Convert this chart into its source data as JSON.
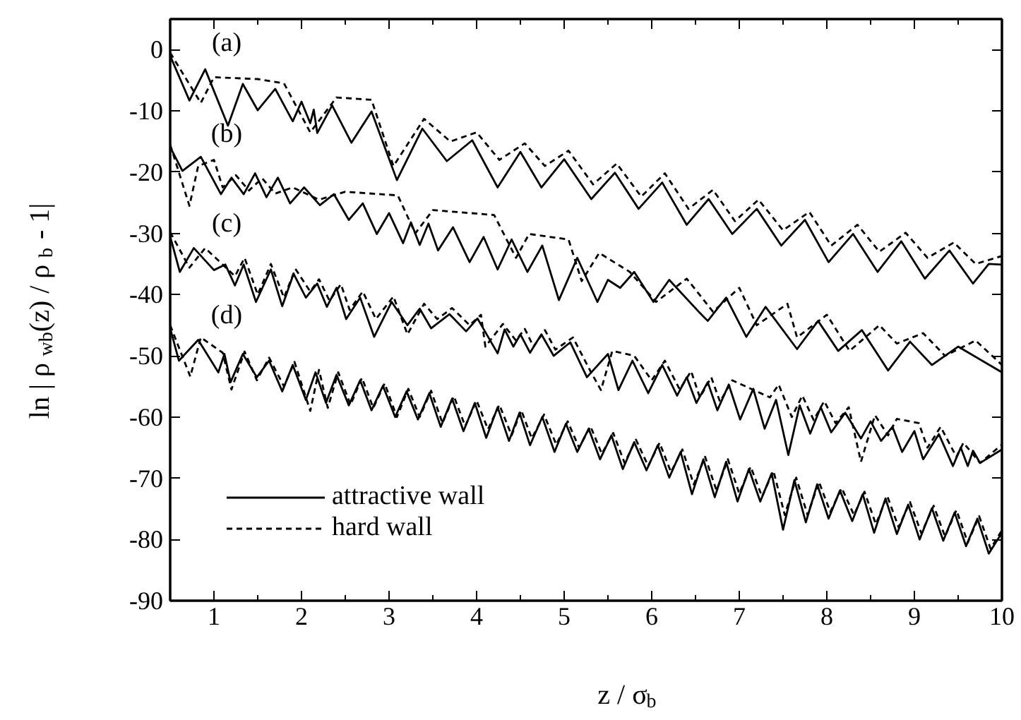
{
  "chart_data": {
    "type": "line",
    "xlabel": "z / σ$_{b}$",
    "ylabel": "ln | ρ$_{wb}$(z) / ρ$_{b}$ - 1|",
    "xlim": [
      0.5,
      10
    ],
    "ylim": [
      -90,
      5
    ],
    "xticks": [
      1,
      2,
      3,
      4,
      5,
      6,
      7,
      8,
      9,
      10
    ],
    "yticks": [
      0,
      -10,
      -20,
      -30,
      -40,
      -50,
      -60,
      -70,
      -80,
      -90
    ],
    "legend": "bottom left",
    "annotations": [
      "(a)",
      "(b)",
      "(c)",
      "(d)"
    ],
    "series": [
      {
        "name": "attractive wall",
        "color": "#000000",
        "line_style": "solid",
        "x": [
          0.5,
          0.72,
          0.9,
          1.16,
          1.33,
          1.5,
          1.7,
          1.9,
          2.0,
          2.1,
          2.14,
          2.18,
          2.35,
          2.57,
          2.8,
          3.09,
          3.38,
          3.66,
          3.95,
          4.24,
          4.5,
          4.74,
          5.0,
          5.31,
          5.58,
          5.85,
          6.12,
          6.4,
          6.65,
          6.92,
          7.2,
          7.48,
          7.75,
          8.02,
          8.3,
          8.58,
          8.85,
          9.12,
          9.4,
          9.67,
          9.85,
          10
        ],
        "values": [
          -1,
          -8.3,
          -3.2,
          -12.4,
          -5.6,
          -9.9,
          -6.4,
          -11.7,
          -8.5,
          -12,
          -9.8,
          -13.6,
          -9.1,
          -15.2,
          -10.1,
          -21.3,
          -12.9,
          -18.2,
          -14.8,
          -22.5,
          -16.7,
          -22.5,
          -17.9,
          -24.4,
          -20.1,
          -26,
          -21.7,
          -28.6,
          -24.4,
          -30.1,
          -26,
          -32,
          -27.8,
          -34.7,
          -30.1,
          -36.3,
          -31.3,
          -37.4,
          -32.8,
          -38.2,
          -35,
          -35.1
        ]
      },
      {
        "name": "hard wall",
        "color": "#000000",
        "line_style": "dashed",
        "x": [
          0.5,
          0.85,
          1.0,
          1.5,
          1.8,
          2.1,
          2.4,
          2.8,
          3.05,
          3.4,
          3.7,
          4.0,
          4.26,
          4.55,
          4.78,
          5.05,
          5.33,
          5.6,
          5.88,
          6.15,
          6.42,
          6.7,
          6.95,
          7.22,
          7.5,
          7.8,
          8.05,
          8.35,
          8.6,
          8.9,
          9.15,
          9.45,
          9.7,
          10
        ],
        "values": [
          -0.5,
          -8.7,
          -4.5,
          -4.8,
          -5.5,
          -13.5,
          -7.8,
          -8.2,
          -19,
          -11.3,
          -15,
          -13.5,
          -18,
          -15.3,
          -19,
          -16.5,
          -22,
          -18.6,
          -24,
          -20.2,
          -26,
          -22.9,
          -28,
          -24.5,
          -29.5,
          -26.5,
          -32,
          -28.6,
          -33,
          -29.9,
          -34,
          -31.5,
          -35,
          -33.7
        ]
      },
      {
        "color": "#000000",
        "line_style": "solid",
        "x": [
          0.5,
          0.64,
          0.85,
          1.08,
          1.2,
          1.34,
          1.47,
          1.6,
          1.73,
          1.87,
          2.03,
          2.21,
          2.37,
          2.54,
          2.7,
          2.86,
          3.0,
          3.16,
          3.25,
          3.35,
          3.45,
          3.56,
          3.73,
          3.92,
          4.08,
          4.24,
          4.4,
          4.58,
          4.75,
          4.94,
          5.15,
          5.38,
          5.5,
          5.64,
          5.8,
          6.02,
          6.2,
          6.55,
          6.64,
          6.85,
          7.08,
          7.3,
          7.66,
          7.9,
          8.13,
          8.4,
          8.7,
          8.95,
          9.2,
          9.5,
          10
        ],
        "values": [
          -15.9,
          -19.8,
          -17.5,
          -23.6,
          -20.9,
          -23.6,
          -20.2,
          -24.1,
          -20.9,
          -25.1,
          -22.5,
          -25.4,
          -23.6,
          -27.8,
          -25.1,
          -30.1,
          -26.7,
          -31.6,
          -28.2,
          -31.9,
          -28.4,
          -32.8,
          -29,
          -34.7,
          -30.6,
          -35.9,
          -31,
          -36.3,
          -32,
          -40.9,
          -34,
          -41.2,
          -37.6,
          -38.9,
          -36.3,
          -41.2,
          -37.6,
          -43,
          -44.3,
          -40.5,
          -46.9,
          -42,
          -48.9,
          -44.3,
          -49.2,
          -45.8,
          -52.4,
          -47.7,
          -51.5,
          -48.5,
          -52.7
        ]
      },
      {
        "color": "#000000",
        "line_style": "dashed",
        "x": [
          0.5,
          0.72,
          0.82,
          1.0,
          1.1,
          1.25,
          1.4,
          1.55,
          1.7,
          1.9,
          2.2,
          2.5,
          3.1,
          3.3,
          3.5,
          4.2,
          4.45,
          4.6,
          5.05,
          5.2,
          5.4,
          5.75,
          6.05,
          6.4,
          6.7,
          7.0,
          7.2,
          7.55,
          7.66,
          8.0,
          8.26,
          8.6,
          8.8,
          9.1,
          9.35,
          9.7,
          10
        ],
        "values": [
          -15.5,
          -25.5,
          -19,
          -18,
          -22.5,
          -20.5,
          -23,
          -21,
          -23.5,
          -22.5,
          -24.5,
          -23.2,
          -23.8,
          -30,
          -26.2,
          -27,
          -34,
          -30.1,
          -31,
          -37.8,
          -33.2,
          -36.3,
          -41.2,
          -37.4,
          -42.8,
          -38.9,
          -45,
          -41.5,
          -47,
          -43.3,
          -49.2,
          -45,
          -48,
          -46.3,
          -50,
          -47.5,
          -51.5
        ]
      },
      {
        "color": "#000000",
        "line_style": "solid",
        "x": [
          0.5,
          0.61,
          0.77,
          1.0,
          1.13,
          1.24,
          1.34,
          1.48,
          1.65,
          1.78,
          1.91,
          2.05,
          2.18,
          2.29,
          2.4,
          2.51,
          2.67,
          2.83,
          3.03,
          3.21,
          3.35,
          3.48,
          3.69,
          3.88,
          4.01,
          4.24,
          4.32,
          4.42,
          4.5,
          4.61,
          4.74,
          4.88,
          5.07,
          5.26,
          5.5,
          5.62,
          5.78,
          5.96,
          6.12,
          6.29,
          6.4,
          6.51,
          6.64,
          6.75,
          6.88,
          7.01,
          7.16,
          7.29,
          7.42,
          7.56,
          7.69,
          7.81,
          7.93,
          8.05,
          8.21,
          8.39,
          8.5,
          8.62,
          8.75,
          8.86,
          9.0,
          9.1,
          9.28,
          9.44,
          9.53,
          9.61,
          9.67,
          9.75,
          10
        ],
        "values": [
          -30.5,
          -36.3,
          -32.4,
          -36,
          -35.1,
          -38.5,
          -35.1,
          -41.2,
          -35.9,
          -41.9,
          -36.6,
          -40.5,
          -38.2,
          -42,
          -38.9,
          -44,
          -40.5,
          -46.9,
          -41.2,
          -45,
          -42.3,
          -45.5,
          -43.2,
          -46,
          -43.9,
          -49.6,
          -45.7,
          -48.5,
          -46.5,
          -49.5,
          -46.5,
          -50,
          -47.8,
          -53.5,
          -49.7,
          -55.6,
          -50.8,
          -56.1,
          -51.5,
          -56.5,
          -53.5,
          -57.7,
          -54.3,
          -58.9,
          -54.7,
          -60.4,
          -55.4,
          -61.9,
          -57.2,
          -66.2,
          -58.1,
          -62.7,
          -58.4,
          -62.5,
          -59.3,
          -63.5,
          -60.7,
          -63.9,
          -61.6,
          -65.7,
          -62.3,
          -66.9,
          -62.8,
          -68,
          -65,
          -68,
          -65.5,
          -67.5,
          -65.3
        ]
      },
      {
        "color": "#000000",
        "line_style": "dashed",
        "x": [
          0.5,
          0.72,
          0.9,
          1.24,
          1.35,
          1.5,
          1.65,
          1.8,
          1.93,
          2.1,
          2.2,
          2.32,
          2.45,
          2.55,
          2.7,
          2.85,
          3.05,
          3.21,
          3.4,
          3.55,
          3.72,
          3.92,
          4.05,
          4.1,
          4.3,
          4.45,
          4.55,
          4.65,
          4.78,
          4.9,
          5.1,
          5.3,
          5.42,
          5.55,
          5.8,
          6.0,
          6.15,
          6.32,
          6.45,
          6.55,
          6.68,
          6.78,
          6.92,
          7.35,
          7.45,
          7.6,
          7.72,
          7.85,
          7.97,
          8.1,
          8.25,
          8.39,
          8.55,
          8.7,
          8.8,
          9.05,
          9.15,
          9.3,
          9.48,
          9.56,
          9.75,
          10
        ],
        "values": [
          -29.8,
          -35.6,
          -32.4,
          -37,
          -34,
          -40,
          -35,
          -40.5,
          -35.8,
          -39.5,
          -37.5,
          -41,
          -38.3,
          -42.5,
          -39.5,
          -44,
          -40.3,
          -46.5,
          -41.5,
          -44,
          -42.2,
          -45,
          -43.3,
          -48.5,
          -44.8,
          -47.5,
          -45.6,
          -48.5,
          -45.8,
          -49,
          -47,
          -52.5,
          -55.6,
          -49.2,
          -50,
          -54,
          -50.8,
          -55.5,
          -52.5,
          -56.8,
          -53.5,
          -57.5,
          -54,
          -56.8,
          -54.7,
          -60,
          -56.5,
          -60.5,
          -57.4,
          -61,
          -58.4,
          -67.3,
          -59.7,
          -63,
          -60.3,
          -61,
          -65,
          -61.6,
          -66.5,
          -64.2,
          -67.5,
          -64.5
        ]
      },
      {
        "color": "#000000",
        "line_style": "solid",
        "x": [
          0.5,
          0.6,
          0.82,
          1.05,
          1.12,
          1.19,
          1.33,
          1.49,
          1.63,
          1.78,
          1.9,
          2.05,
          2.16,
          2.28,
          2.4,
          2.54,
          2.67,
          2.8,
          2.93,
          3.07,
          3.2,
          3.33,
          3.46,
          3.59,
          3.72,
          3.85,
          3.98,
          4.11,
          4.24,
          4.37,
          4.49,
          4.61,
          4.75,
          4.89,
          5.02,
          5.15,
          5.28,
          5.41,
          5.54,
          5.67,
          5.8,
          5.94,
          6.07,
          6.2,
          6.33,
          6.46,
          6.59,
          6.72,
          6.85,
          6.98,
          7.11,
          7.24,
          7.37,
          7.5,
          7.63,
          7.76,
          7.89,
          8.02,
          8.15,
          8.29,
          8.41,
          8.54,
          8.67,
          8.8,
          8.93,
          9.06,
          9.2,
          9.33,
          9.46,
          9.59,
          9.72,
          9.85,
          10
        ],
        "values": [
          -45.5,
          -50.8,
          -47.4,
          -52.7,
          -49.7,
          -54.3,
          -49.7,
          -53.5,
          -50.8,
          -55.8,
          -51.5,
          -57.2,
          -52.7,
          -57.7,
          -53.1,
          -58.1,
          -54,
          -58.9,
          -54.9,
          -60,
          -55.8,
          -60.4,
          -56.1,
          -61.6,
          -57,
          -62.3,
          -57.7,
          -63.4,
          -58.4,
          -63.9,
          -59.3,
          -64.6,
          -60,
          -65.7,
          -61.1,
          -65.7,
          -61.9,
          -66.9,
          -63,
          -68.5,
          -64.1,
          -68.7,
          -64.6,
          -69.9,
          -65.7,
          -72.6,
          -66.9,
          -73.1,
          -67.3,
          -73.8,
          -68.5,
          -73.8,
          -69.2,
          -78.4,
          -70.3,
          -77.2,
          -71,
          -76.6,
          -72,
          -77,
          -72.6,
          -78.9,
          -73.3,
          -79.1,
          -74.3,
          -80,
          -74.9,
          -80.2,
          -75.6,
          -81.1,
          -76.6,
          -82.3,
          -78.9
        ]
      },
      {
        "color": "#000000",
        "line_style": "dashed",
        "x": [
          0.5,
          0.73,
          0.85,
          1.1,
          1.2,
          1.35,
          1.49,
          1.63,
          1.8,
          1.92,
          2.1,
          2.2,
          2.3,
          2.42,
          2.56,
          2.69,
          2.82,
          2.95,
          3.09,
          3.22,
          3.35,
          3.48,
          3.61,
          3.74,
          3.87,
          4.0,
          4.13,
          4.26,
          4.4,
          4.51,
          4.63,
          4.77,
          4.91,
          5.04,
          5.17,
          5.3,
          5.43,
          5.56,
          5.69,
          5.82,
          5.96,
          6.09,
          6.22,
          6.35,
          6.48,
          6.61,
          6.74,
          6.87,
          7.0,
          7.13,
          7.26,
          7.39,
          7.52,
          7.65,
          7.78,
          7.91,
          8.04,
          8.17,
          8.31,
          8.43,
          8.56,
          8.69,
          8.82,
          8.95,
          9.08,
          9.22,
          9.35,
          9.48,
          9.61,
          9.74,
          9.87,
          10
        ],
        "values": [
          -45,
          -53.4,
          -47,
          -49.5,
          -55.5,
          -49.3,
          -54,
          -50.3,
          -55,
          -51,
          -59,
          -52.3,
          -58.5,
          -52.7,
          -58,
          -53.6,
          -58.5,
          -54.5,
          -60,
          -55.4,
          -60,
          -55.7,
          -61,
          -56.6,
          -61.5,
          -57.3,
          -62,
          -58,
          -63,
          -58.9,
          -63.5,
          -59.6,
          -64.5,
          -60.7,
          -65,
          -61.5,
          -66,
          -62.6,
          -67.5,
          -63.7,
          -68,
          -64.2,
          -69,
          -65.3,
          -71,
          -66.5,
          -72,
          -66.9,
          -72.5,
          -68.1,
          -73,
          -68.8,
          -76,
          -69.9,
          -76,
          -70.6,
          -75.5,
          -71.6,
          -76,
          -72.2,
          -77.5,
          -72.9,
          -78,
          -73.9,
          -79,
          -74.5,
          -79.5,
          -75.2,
          -80.5,
          -76.2,
          -81.5,
          -78.5
        ]
      }
    ]
  }
}
